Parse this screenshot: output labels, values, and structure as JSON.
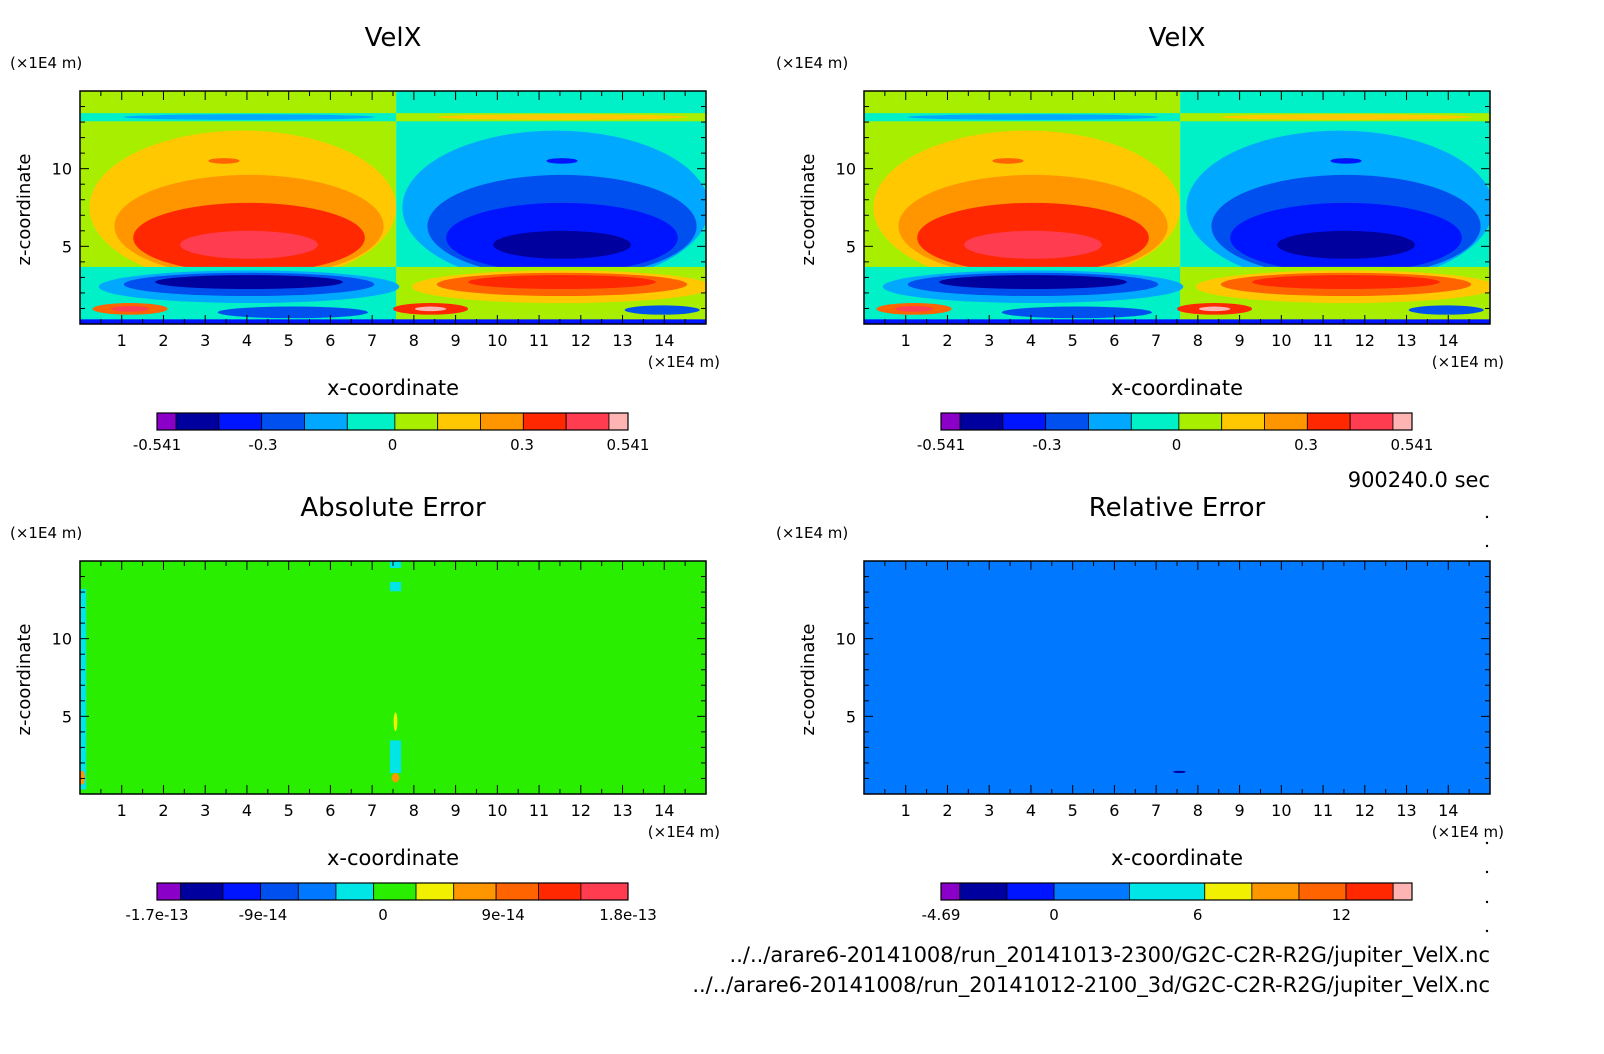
{
  "time_label": "900240.0 sec",
  "file_paths": [
    "../../arare6-20141008/run_20141013-2300/G2C-C2R-R2G/jupiter_VelX.nc",
    "../../arare6-20141008/run_20141012-2100_3d/G2C-C2R-R2G/jupiter_VelX.nc"
  ],
  "colors": {
    "purple": "#8a00c8",
    "navy": "#00009e",
    "blue": "#0015ff",
    "mid_blue": "#0050f0",
    "sky": "#0078ff",
    "light_sky": "#00a8ff",
    "cyan": "#00e6e6",
    "aqua": "#00f0c8",
    "lime": "#a8ee00",
    "green": "#2aee00",
    "yellow": "#f0f000",
    "gold": "#ffc800",
    "orange": "#ff9600",
    "dark_orange": "#ff6400",
    "red": "#ff2800",
    "red2": "#ff3c50",
    "pink": "#ffb4b4"
  },
  "chart_data": [
    {
      "type": "heatmap",
      "title": "VelX",
      "xlabel": "x-coordinate",
      "ylabel": "z-coordinate",
      "x_unit": "(×1E4 m)",
      "y_unit": "(×1E4 m)",
      "xlim": [
        0,
        15
      ],
      "ylim": [
        0,
        15
      ],
      "x_ticks": [
        1,
        2,
        3,
        4,
        5,
        6,
        7,
        8,
        9,
        10,
        11,
        12,
        13,
        14
      ],
      "y_ticks": [
        5,
        10
      ],
      "colorbar_ticks": [
        "-0.541",
        "-0.3",
        "0",
        "0.3",
        "0.541"
      ],
      "colorbar_range": [
        -0.541,
        0.541
      ]
    },
    {
      "type": "heatmap",
      "title": "VelX",
      "xlabel": "x-coordinate",
      "ylabel": "z-coordinate",
      "x_unit": "(×1E4 m)",
      "y_unit": "(×1E4 m)",
      "xlim": [
        0,
        15
      ],
      "ylim": [
        0,
        15
      ],
      "x_ticks": [
        1,
        2,
        3,
        4,
        5,
        6,
        7,
        8,
        9,
        10,
        11,
        12,
        13,
        14
      ],
      "y_ticks": [
        5,
        10
      ],
      "colorbar_ticks": [
        "-0.541",
        "-0.3",
        "0",
        "0.3",
        "0.541"
      ],
      "colorbar_range": [
        -0.541,
        0.541
      ]
    },
    {
      "type": "heatmap",
      "title": "Absolute Error",
      "xlabel": "x-coordinate",
      "ylabel": "z-coordinate",
      "x_unit": "(×1E4 m)",
      "y_unit": "(×1E4 m)",
      "xlim": [
        0,
        15
      ],
      "ylim": [
        0,
        15
      ],
      "x_ticks": [
        1,
        2,
        3,
        4,
        5,
        6,
        7,
        8,
        9,
        10,
        11,
        12,
        13,
        14
      ],
      "y_ticks": [
        5,
        10
      ],
      "colorbar_ticks": [
        "-1.7e-13",
        "-9e-14",
        "0",
        "9e-14",
        "1.8e-13"
      ],
      "colorbar_range": [
        -1.7e-13,
        1.8e-13
      ]
    },
    {
      "type": "heatmap",
      "title": "Relative Error",
      "xlabel": "x-coordinate",
      "ylabel": "z-coordinate",
      "x_unit": "(×1E4 m)",
      "y_unit": "(×1E4 m)",
      "xlim": [
        0,
        15
      ],
      "ylim": [
        0,
        15
      ],
      "x_ticks": [
        1,
        2,
        3,
        4,
        5,
        6,
        7,
        8,
        9,
        10,
        11,
        12,
        13,
        14
      ],
      "y_ticks": [
        5,
        10
      ],
      "colorbar_ticks": [
        "-4.69",
        "0",
        "6",
        "12"
      ],
      "colorbar_range": [
        -4.69,
        15
      ]
    }
  ]
}
